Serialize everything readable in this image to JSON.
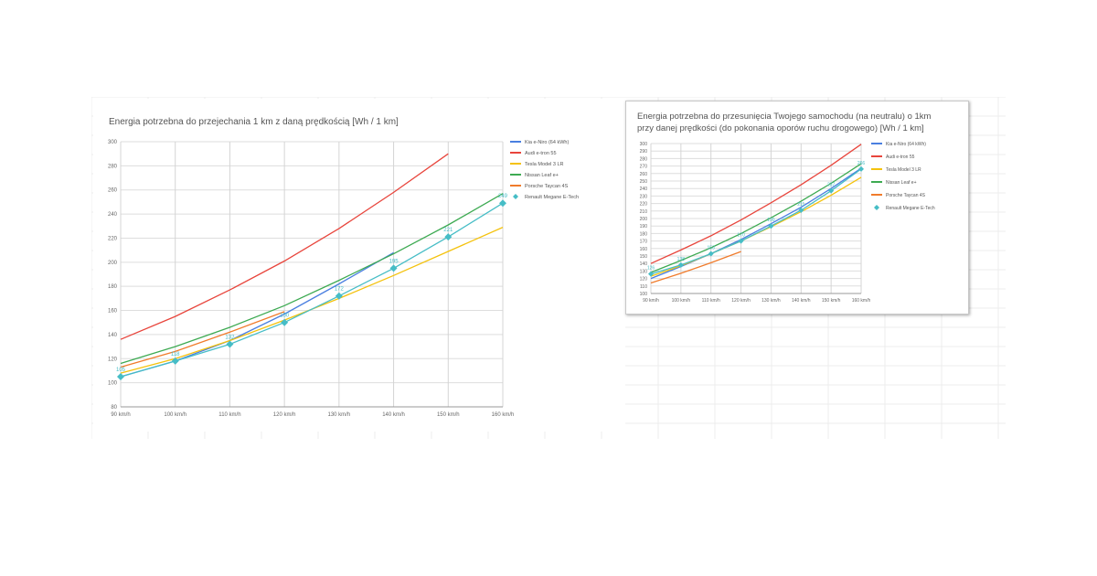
{
  "charts": [
    {
      "title": "Energia potrzebna do przejechania 1 km z daną prędkością [Wh / 1 km]",
      "title_lines": [
        "Energia potrzebna do przejechania 1 km z daną prędkością [Wh / 1 km]"
      ],
      "legend_labels": [
        "Kia e-Niro (64 kWh)",
        "Audi e-tron 55",
        "Tesla Model 3 LR",
        "Nissan Leaf e+",
        "Porsche Taycan 4S",
        "Renault Megane E-Tech"
      ]
    },
    {
      "title": "Energia potrzebna do przesunięcia Twojego samochodu (na neutralu) o 1km przy danej prędkości (do pokonania oporów ruchu drogowego) [Wh / 1 km]",
      "title_lines": [
        "Energia potrzebna do przesunięcia Twojego samochodu (na neutralu) o 1km",
        "przy danej prędkości (do pokonania oporów ruchu drogowego) [Wh / 1 km]"
      ],
      "legend_labels": [
        "Kia e-Niro (64 kWh)",
        "Audi e-tron 55",
        "Tesla Model 3 LR",
        "Nissan Leaf e+",
        "Porsche Taycan 4S",
        "Renault Megane E-Tech"
      ]
    }
  ],
  "chart_data": [
    {
      "type": "line",
      "title": "Energia potrzebna do przejechania 1 km z daną prędkością [Wh / 1 km]",
      "categories": [
        "90 km/h",
        "100 km/h",
        "110 km/h",
        "120 km/h",
        "130 km/h",
        "140 km/h",
        "150 km/h",
        "160 km/h"
      ],
      "ylim": [
        80,
        300
      ],
      "yticks": [
        80,
        100,
        120,
        140,
        160,
        180,
        200,
        220,
        240,
        260,
        280,
        300
      ],
      "grid": true,
      "legend_position": "right",
      "series": [
        {
          "name": "Kia e-Niro (64 kWh)",
          "color": "#4a7fe0",
          "values": [
            105,
            118,
            135,
            157,
            182,
            208,
            null,
            null
          ],
          "labels": false,
          "markers": false
        },
        {
          "name": "Audi e-tron 55",
          "color": "#e8453c",
          "values": [
            136,
            155,
            177,
            201,
            228,
            258,
            290,
            null
          ],
          "labels": false,
          "markers": false
        },
        {
          "name": "Tesla Model 3 LR",
          "color": "#f4c20d",
          "values": [
            108,
            120,
            135,
            152,
            170,
            189,
            209,
            229
          ],
          "labels": false,
          "markers": false
        },
        {
          "name": "Nissan Leaf e+",
          "color": "#3daa52",
          "values": [
            116,
            130,
            146,
            164,
            185,
            207,
            231,
            257
          ],
          "labels": false,
          "markers": false
        },
        {
          "name": "Porsche Taycan 4S",
          "color": "#f07b2b",
          "values": [
            113,
            126,
            142,
            159,
            null,
            null,
            null,
            null
          ],
          "labels": false,
          "markers": false
        },
        {
          "name": "Renault Megane E-Tech",
          "color": "#46bdc6",
          "values": [
            105,
            118,
            132,
            150,
            172,
            195,
            221,
            249
          ],
          "labels": true,
          "markers": true
        }
      ]
    },
    {
      "type": "line",
      "title": "Energia potrzebna do przesunięcia Twojego samochodu (na neutralu) o 1km przy danej prędkości (do pokonania oporów ruchu drogowego) [Wh / 1 km]",
      "categories": [
        "90 km/h",
        "100 km/h",
        "110 km/h",
        "120 km/h",
        "130 km/h",
        "140 km/h",
        "150 km/h",
        "160 km/h"
      ],
      "ylim": [
        100,
        300
      ],
      "yticks": [
        100,
        110,
        120,
        130,
        140,
        150,
        160,
        170,
        180,
        190,
        200,
        210,
        220,
        230,
        240,
        250,
        260,
        270,
        280,
        290,
        300
      ],
      "grid": true,
      "legend_position": "right",
      "series": [
        {
          "name": "Kia e-Niro (64 kWh)",
          "color": "#4a7fe0",
          "values": [
            120,
            136,
            153,
            172,
            193,
            215,
            240,
            267
          ],
          "labels": false,
          "markers": false
        },
        {
          "name": "Audi e-tron 55",
          "color": "#e8453c",
          "values": [
            140,
            158,
            177,
            198,
            221,
            245,
            271,
            299
          ],
          "labels": false,
          "markers": false
        },
        {
          "name": "Tesla Model 3 LR",
          "color": "#f4c20d",
          "values": [
            123,
            137,
            153,
            170,
            189,
            209,
            231,
            255
          ],
          "labels": false,
          "markers": false
        },
        {
          "name": "Nissan Leaf e+",
          "color": "#3daa52",
          "values": [
            128,
            144,
            161,
            180,
            201,
            223,
            247,
            273
          ],
          "labels": false,
          "markers": false
        },
        {
          "name": "Porsche Taycan 4S",
          "color": "#f07b2b",
          "values": [
            114,
            127,
            141,
            156,
            null,
            null,
            null,
            null
          ],
          "labels": false,
          "markers": false
        },
        {
          "name": "Renault Megane E-Tech",
          "color": "#46bdc6",
          "values": [
            126,
            138,
            153,
            170,
            190,
            211,
            237,
            266
          ],
          "labels": true,
          "markers": true
        }
      ]
    }
  ]
}
